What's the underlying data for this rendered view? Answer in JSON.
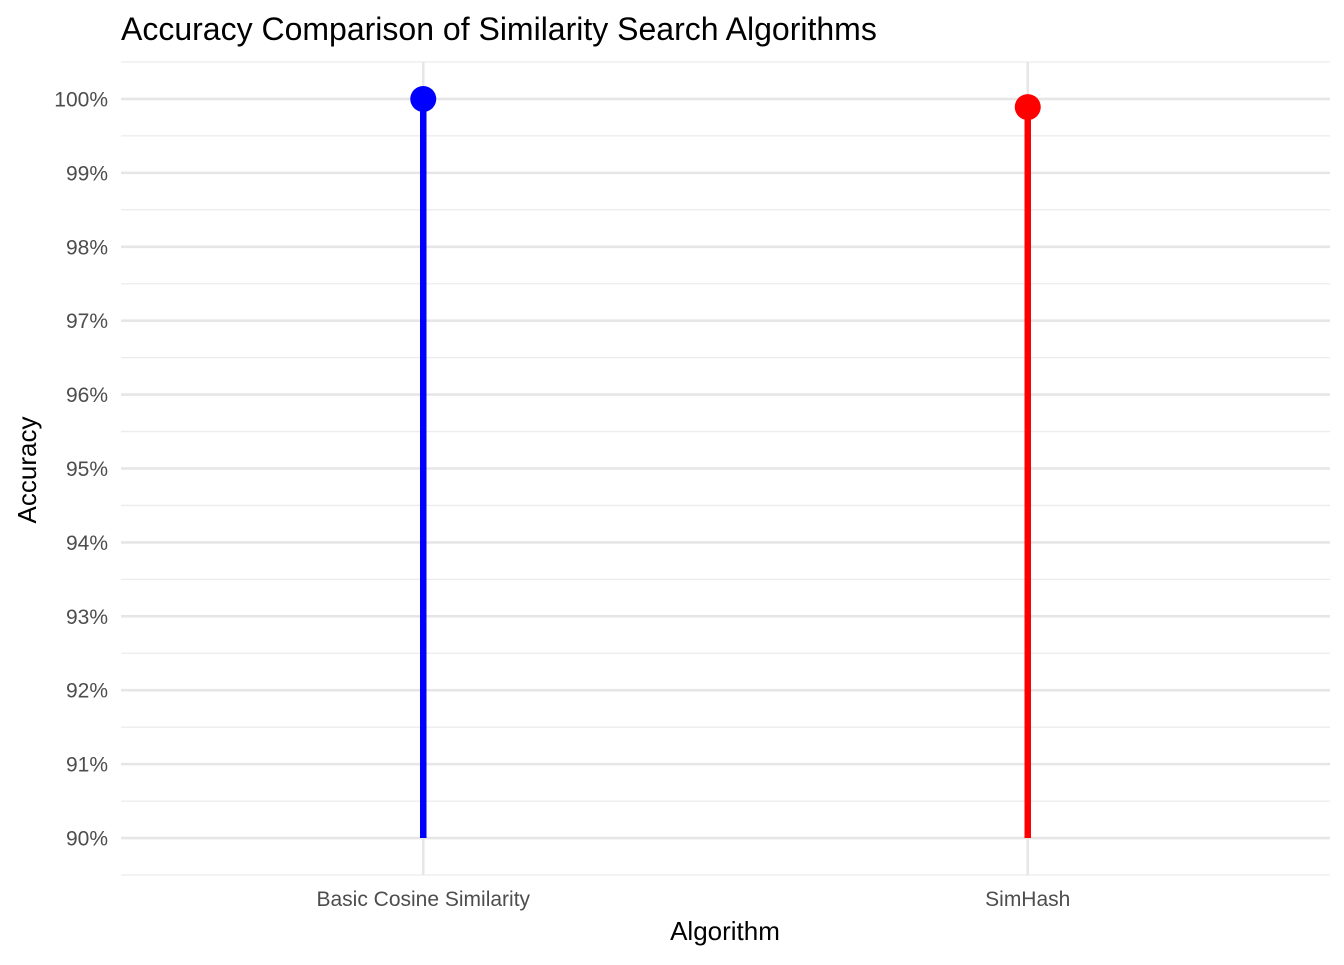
{
  "chart_data": {
    "type": "lollipop",
    "title": "Accuracy Comparison of Similarity Search Algorithms",
    "xlabel": "Algorithm",
    "ylabel": "Accuracy",
    "categories": [
      "Basic Cosine Similarity",
      "SimHash"
    ],
    "values": [
      100.0,
      99.89
    ],
    "baseline": 90,
    "colors": [
      "#0000ff",
      "#ff0000"
    ],
    "ylim": [
      89.5,
      100.5
    ],
    "yticks": [
      90,
      91,
      92,
      93,
      94,
      95,
      96,
      97,
      98,
      99,
      100
    ],
    "ytick_labels": [
      "90%",
      "91%",
      "92%",
      "93%",
      "94%",
      "95%",
      "96%",
      "97%",
      "98%",
      "99%",
      "100%"
    ],
    "grid": true,
    "legend": "none"
  }
}
